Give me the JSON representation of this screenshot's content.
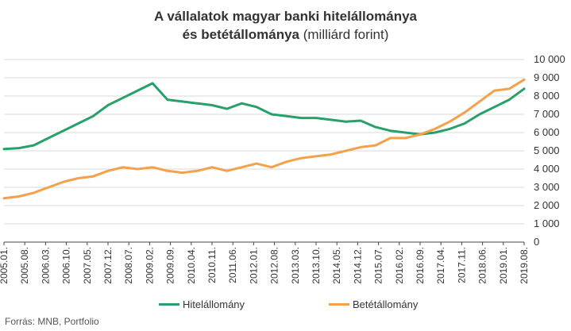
{
  "title": {
    "line1": "A vállalatok magyar banki hitelállománya",
    "line2_bold": "és betétállománya",
    "line2_normal": " (milliárd forint)"
  },
  "source": "Forrás: MNB, Portfolio",
  "colors": {
    "hitel": "#27a06a",
    "betet": "#f5a04a",
    "grid": "#d9d9d9",
    "axis": "#444444"
  },
  "chart_data": {
    "type": "line",
    "ylim": [
      0,
      10000
    ],
    "yticks": [
      0,
      1000,
      2000,
      3000,
      4000,
      5000,
      6000,
      7000,
      8000,
      9000,
      10000
    ],
    "ytick_labels": [
      "0",
      "1 000",
      "2 000",
      "3 000",
      "4 000",
      "5 000",
      "6 000",
      "7 000",
      "8 000",
      "9 000",
      "10 000"
    ],
    "xtick_labels": [
      "2005.01.",
      "2005.08.",
      "2006.03.",
      "2006.10.",
      "2007.05.",
      "2007.12.",
      "2008.07.",
      "2009.02.",
      "2009.09.",
      "2010.04.",
      "2010.11.",
      "2011.06.",
      "2012.01.",
      "2012.08.",
      "2013.03.",
      "2013.10.",
      "2014.05.",
      "2014.12.",
      "2015.07.",
      "2016.02.",
      "2016.09.",
      "2017.04.",
      "2017.11.",
      "2018.06.",
      "2019.01.",
      "2019.08."
    ],
    "legend_position": "bottom",
    "series": [
      {
        "name": "Hitelállomány",
        "x": [
          "2005.01.",
          "2005.06.",
          "2005.11.",
          "2006.04.",
          "2006.09.",
          "2007.02.",
          "2007.07.",
          "2007.12.",
          "2008.05.",
          "2008.10.",
          "2009.03.",
          "2009.08.",
          "2010.01.",
          "2010.06.",
          "2010.11.",
          "2011.04.",
          "2011.09.",
          "2012.02.",
          "2012.07.",
          "2012.12.",
          "2013.05.",
          "2013.10.",
          "2014.03.",
          "2014.08.",
          "2015.01.",
          "2015.06.",
          "2015.11.",
          "2016.04.",
          "2016.09.",
          "2017.02.",
          "2017.07.",
          "2017.12.",
          "2018.05.",
          "2018.10.",
          "2019.03.",
          "2019.08."
        ],
        "values": [
          5100,
          5150,
          5300,
          5700,
          6100,
          6500,
          6900,
          7500,
          7900,
          8300,
          8700,
          7800,
          7700,
          7600,
          7500,
          7300,
          7600,
          7400,
          7000,
          6900,
          6800,
          6800,
          6700,
          6600,
          6650,
          6300,
          6100,
          6000,
          5900,
          6000,
          6200,
          6500,
          7000,
          7400,
          7800,
          8400
        ]
      },
      {
        "name": "Betétállomány",
        "x": [
          "2005.01.",
          "2005.06.",
          "2005.11.",
          "2006.04.",
          "2006.09.",
          "2007.02.",
          "2007.07.",
          "2007.12.",
          "2008.05.",
          "2008.10.",
          "2009.03.",
          "2009.08.",
          "2010.01.",
          "2010.06.",
          "2010.11.",
          "2011.04.",
          "2011.09.",
          "2012.02.",
          "2012.07.",
          "2012.12.",
          "2013.05.",
          "2013.10.",
          "2014.03.",
          "2014.08.",
          "2015.01.",
          "2015.06.",
          "2015.11.",
          "2016.04.",
          "2016.09.",
          "2017.02.",
          "2017.07.",
          "2017.12.",
          "2018.05.",
          "2018.10.",
          "2019.03.",
          "2019.08."
        ],
        "values": [
          2400,
          2500,
          2700,
          3000,
          3300,
          3500,
          3600,
          3900,
          4100,
          4000,
          4100,
          3900,
          3800,
          3900,
          4100,
          3900,
          4100,
          4300,
          4100,
          4400,
          4600,
          4700,
          4800,
          5000,
          5200,
          5300,
          5700,
          5700,
          5900,
          6200,
          6600,
          7100,
          7700,
          8300,
          8400,
          8900
        ]
      }
    ]
  }
}
